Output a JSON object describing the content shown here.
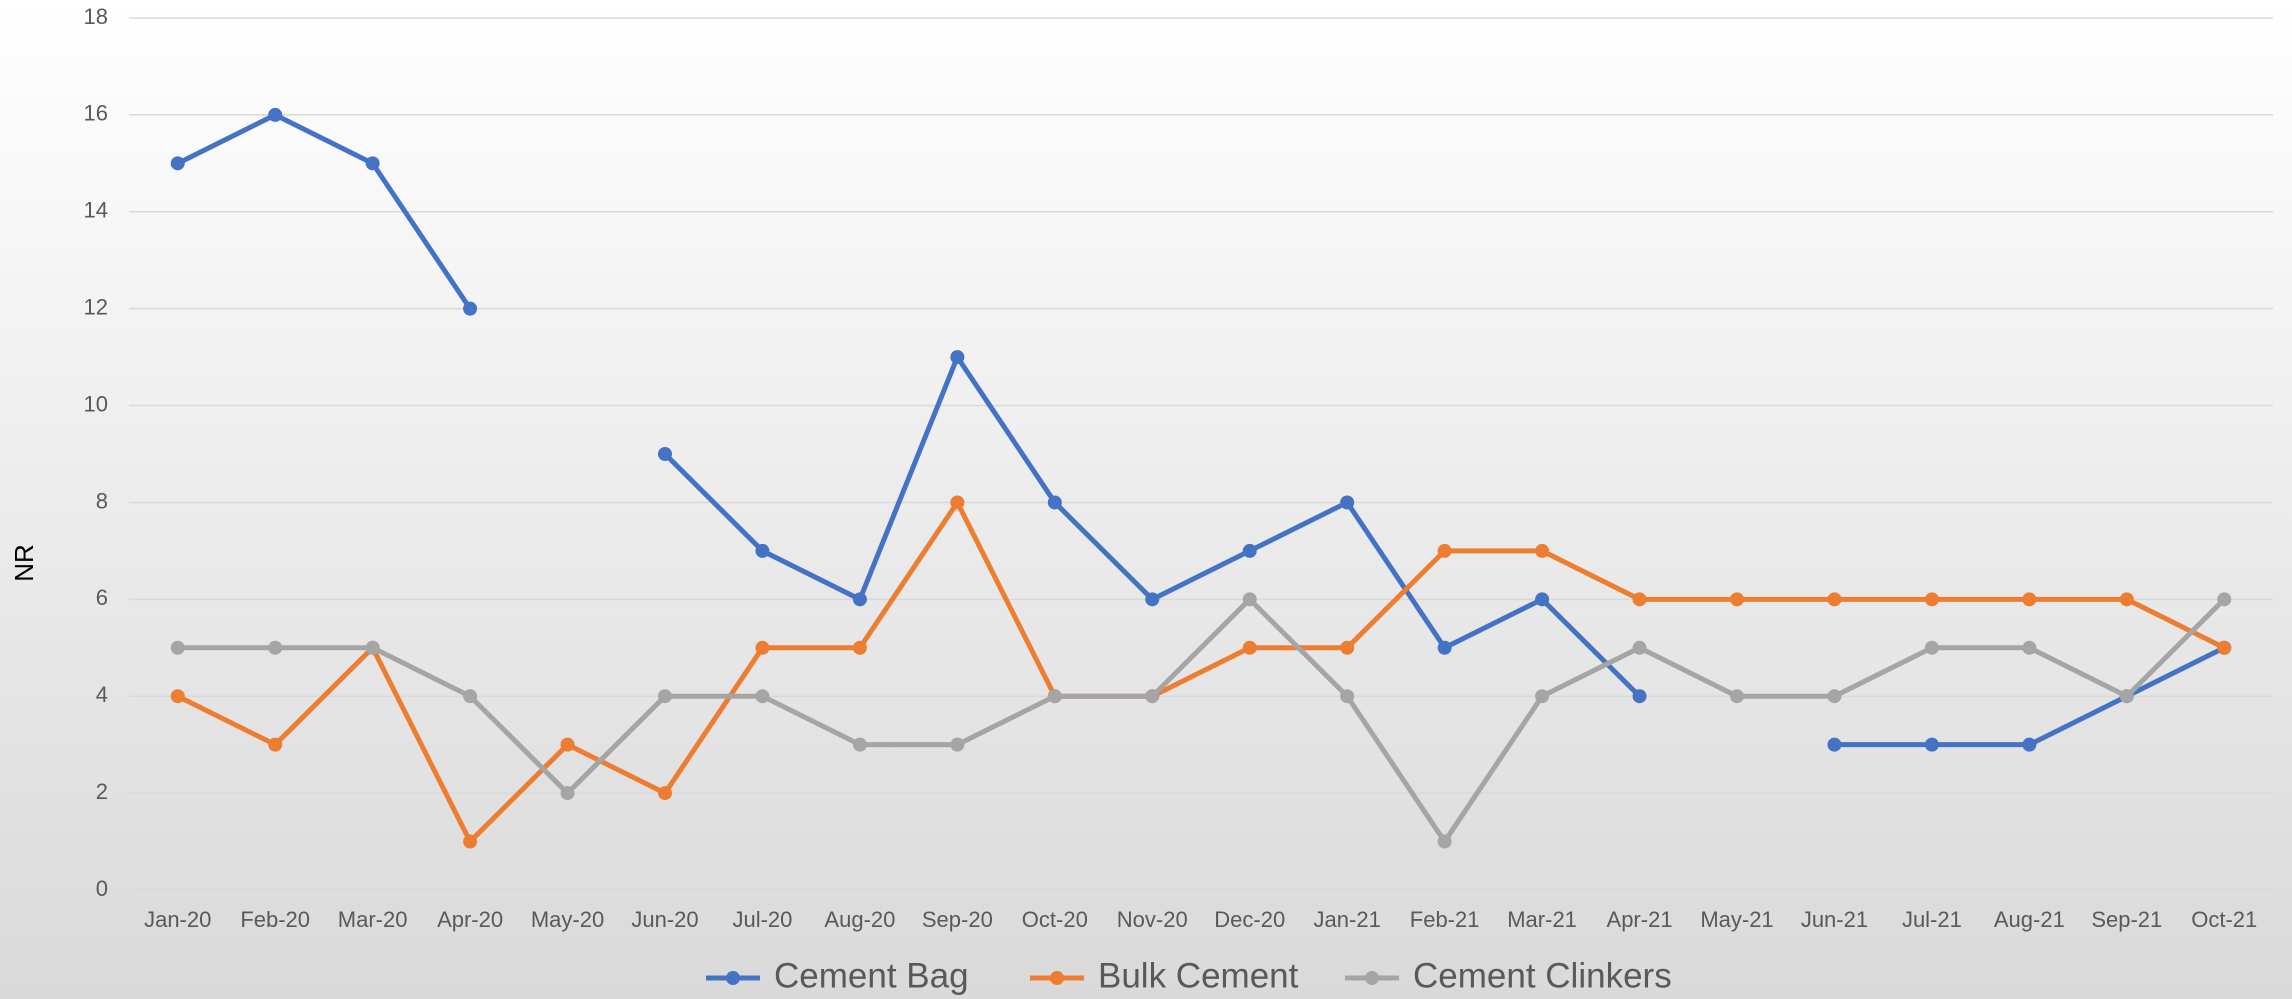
{
  "chart_data": {
    "type": "line",
    "ylabel": "NR",
    "categories": [
      "Jan-20",
      "Feb-20",
      "Mar-20",
      "Apr-20",
      "May-20",
      "Jun-20",
      "Jul-20",
      "Aug-20",
      "Sep-20",
      "Oct-20",
      "Nov-20",
      "Dec-20",
      "Jan-21",
      "Feb-21",
      "Mar-21",
      "Apr-21",
      "May-21",
      "Jun-21",
      "Jul-21",
      "Aug-21",
      "Sep-21",
      "Oct-21"
    ],
    "series": [
      {
        "name": "Cement Bag",
        "color": "#4472c4",
        "values": [
          15,
          16,
          15,
          12,
          null,
          9,
          7,
          6,
          11,
          8,
          6,
          7,
          8,
          5,
          6,
          4,
          null,
          3,
          3,
          3,
          4,
          5
        ]
      },
      {
        "name": "Bulk Cement",
        "color": "#ed7d31",
        "values": [
          4,
          3,
          5,
          1,
          3,
          2,
          5,
          5,
          8,
          4,
          4,
          5,
          5,
          7,
          7,
          6,
          6,
          6,
          6,
          6,
          6,
          5
        ]
      },
      {
        "name": "Cement Clinkers",
        "color": "#a5a5a5",
        "values": [
          5,
          5,
          5,
          4,
          2,
          4,
          4,
          3,
          3,
          4,
          4,
          6,
          4,
          1,
          4,
          5,
          4,
          4,
          5,
          5,
          4,
          6
        ]
      }
    ],
    "ylim": [
      0,
      18
    ],
    "yticks": [
      0,
      2,
      4,
      6,
      8,
      10,
      12,
      14,
      16,
      18
    ],
    "grid": true,
    "legend": "bottom"
  }
}
